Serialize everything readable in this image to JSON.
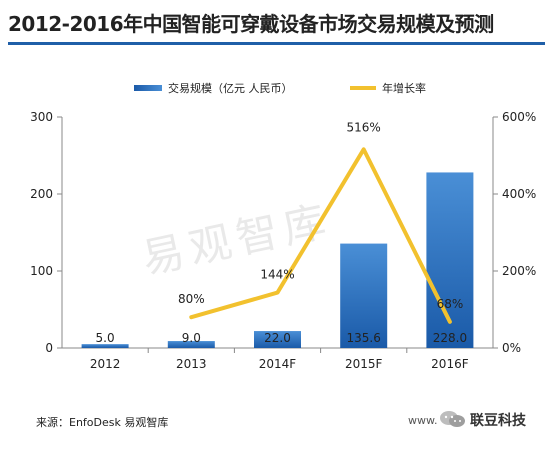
{
  "title": "2012-2016年中国智能可穿戴设备市场交易规模及预测",
  "watermark": "易观智库",
  "source": "来源：EnfoDesk 易观智库",
  "footer_right": "www.",
  "brand": "联豆科技",
  "colors": {
    "title_rule": "#1f5fa8",
    "bar_light": "#4a8fd6",
    "bar_dark": "#1a5aa8",
    "line": "#f2c12e"
  },
  "chart_data": {
    "type": "bar",
    "categories": [
      "2012",
      "2013",
      "2014F",
      "2015F",
      "2016F"
    ],
    "series": [
      {
        "name": "交易规模（亿元 人民币）",
        "type": "bar",
        "axis": "left",
        "values": [
          5.0,
          9.0,
          22.0,
          135.6,
          228.0
        ],
        "labels": [
          "5.0",
          "9.0",
          "22.0",
          "135.6",
          "228.0"
        ]
      },
      {
        "name": "年增长率",
        "type": "line",
        "axis": "right",
        "values": [
          null,
          80,
          144,
          516,
          68
        ],
        "labels": [
          "",
          "80%",
          "144%",
          "516%",
          "68%"
        ]
      }
    ],
    "y_left": {
      "ylim": [
        0,
        300
      ],
      "ticks": [
        "0",
        "100",
        "200",
        "300"
      ]
    },
    "y_right": {
      "ylim": [
        0,
        600
      ],
      "ticks": [
        "0%",
        "200%",
        "400%",
        "600%"
      ]
    },
    "legend_position": "top",
    "grid": false
  }
}
